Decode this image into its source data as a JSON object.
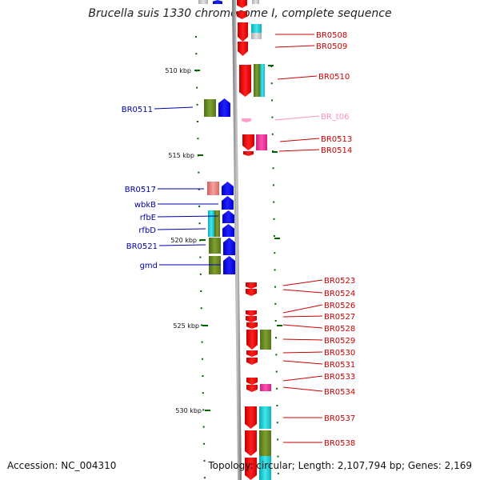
{
  "title": "Brucella suis 1330 chromosome I, complete sequence",
  "footer": {
    "accession": "Accession: NC_004310",
    "topology": "Topology: circular; Length: 2,107,794 bp; Genes: 2,169"
  },
  "colors": {
    "forward_gene": "#f00000",
    "reverse_gene": "#0000f0",
    "rna": "#ff9fc8",
    "cog_cyan": "#22c8cc",
    "cog_olive": "#6b8e23",
    "cog_pink": "#f0309a",
    "cog_salmon": "#e88080",
    "cog_grey": "#c0c0c0",
    "label_forward": "#cc0000",
    "label_reverse": "#0000b0",
    "label_rna": "#ff8fc0",
    "tick": "#006400",
    "backbone": "#888888"
  },
  "ticks": [
    {
      "label": "510 kbp"
    },
    {
      "label": "515 kbp"
    },
    {
      "label": "520 kbp"
    },
    {
      "label": "525 kbp"
    },
    {
      "label": "530 kbp"
    }
  ],
  "forward_labels": [
    "BR0508",
    "BR0509",
    "BR0510",
    "BR_t06",
    "BR0513",
    "BR0514",
    "BR0523",
    "BR0524",
    "BR0526",
    "BR0527",
    "BR0528",
    "BR0529",
    "BR0530",
    "BR0531",
    "BR0533",
    "BR0534",
    "BR0537",
    "BR0538"
  ],
  "reverse_labels": [
    "BR0511",
    "BR0517",
    "wbkB",
    "rfbE",
    "rfbD",
    "BR0521",
    "gmd"
  ]
}
